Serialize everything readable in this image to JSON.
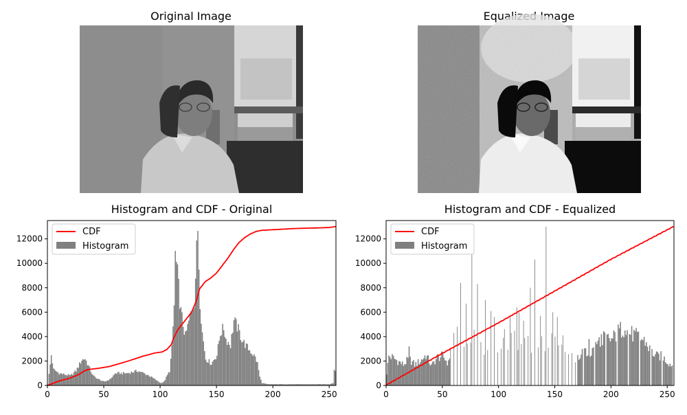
{
  "figure": {
    "panels": [
      {
        "title": "Original Image",
        "icon": "photo-grayscale"
      },
      {
        "title": "Equalized Image",
        "icon": "photo-grayscale-equalized"
      }
    ]
  },
  "colors": {
    "cdf": "#ff0000",
    "histogram": "#808080",
    "axes": "#000000"
  },
  "chart_data": [
    {
      "type": "bar",
      "title": "Histogram and CDF - Original",
      "xlabel": "",
      "ylabel": "",
      "xlim": [
        0,
        256
      ],
      "ylim": [
        0,
        13500
      ],
      "xticks": [
        "0",
        "50",
        "100",
        "150",
        "200",
        "250"
      ],
      "yticks": [
        "0",
        "2000",
        "4000",
        "6000",
        "8000",
        "10000",
        "12000"
      ],
      "legend": {
        "placement": "top-left",
        "entries": [
          "CDF",
          "Histogram"
        ]
      },
      "histogram_keypoints": [
        [
          0,
          100
        ],
        [
          3,
          2500
        ],
        [
          5,
          1300
        ],
        [
          10,
          1000
        ],
        [
          20,
          800
        ],
        [
          25,
          1200
        ],
        [
          30,
          2100
        ],
        [
          33,
          2200
        ],
        [
          37,
          1400
        ],
        [
          40,
          800
        ],
        [
          45,
          500
        ],
        [
          50,
          300
        ],
        [
          55,
          500
        ],
        [
          60,
          1000
        ],
        [
          70,
          1000
        ],
        [
          80,
          1200
        ],
        [
          85,
          1000
        ],
        [
          90,
          800
        ],
        [
          95,
          500
        ],
        [
          100,
          200
        ],
        [
          103,
          300
        ],
        [
          108,
          1200
        ],
        [
          110,
          3000
        ],
        [
          112,
          6500
        ],
        [
          113,
          10700
        ],
        [
          115,
          9000
        ],
        [
          118,
          6000
        ],
        [
          122,
          4000
        ],
        [
          126,
          5600
        ],
        [
          130,
          7000
        ],
        [
          133,
          12900
        ],
        [
          135,
          7000
        ],
        [
          137,
          4300
        ],
        [
          140,
          2200
        ],
        [
          145,
          1800
        ],
        [
          150,
          2500
        ],
        [
          153,
          4300
        ],
        [
          156,
          4700
        ],
        [
          158,
          3800
        ],
        [
          162,
          3300
        ],
        [
          165,
          5300
        ],
        [
          168,
          4800
        ],
        [
          172,
          3800
        ],
        [
          176,
          3200
        ],
        [
          180,
          2800
        ],
        [
          184,
          2300
        ],
        [
          186,
          1800
        ],
        [
          188,
          700
        ],
        [
          190,
          200
        ],
        [
          195,
          100
        ],
        [
          210,
          100
        ],
        [
          230,
          100
        ],
        [
          250,
          100
        ],
        [
          253,
          200
        ],
        [
          254,
          1300
        ],
        [
          255,
          1200
        ]
      ],
      "cdf_keypoints": [
        [
          0,
          0
        ],
        [
          10,
          350
        ],
        [
          20,
          600
        ],
        [
          28,
          900
        ],
        [
          33,
          1200
        ],
        [
          36,
          1300
        ],
        [
          45,
          1400
        ],
        [
          55,
          1550
        ],
        [
          70,
          1950
        ],
        [
          85,
          2400
        ],
        [
          95,
          2650
        ],
        [
          102,
          2750
        ],
        [
          106,
          2950
        ],
        [
          110,
          3350
        ],
        [
          112,
          3900
        ],
        [
          116,
          4600
        ],
        [
          122,
          5300
        ],
        [
          128,
          6000
        ],
        [
          132,
          6900
        ],
        [
          135,
          7900
        ],
        [
          140,
          8500
        ],
        [
          145,
          8800
        ],
        [
          150,
          9200
        ],
        [
          155,
          9800
        ],
        [
          160,
          10400
        ],
        [
          165,
          11100
        ],
        [
          170,
          11700
        ],
        [
          175,
          12100
        ],
        [
          180,
          12400
        ],
        [
          185,
          12600
        ],
        [
          190,
          12700
        ],
        [
          200,
          12750
        ],
        [
          220,
          12850
        ],
        [
          240,
          12900
        ],
        [
          250,
          12930
        ],
        [
          255,
          13000
        ]
      ]
    },
    {
      "type": "bar",
      "title": "Histogram and CDF - Equalized",
      "xlabel": "",
      "ylabel": "",
      "xlim": [
        0,
        256
      ],
      "ylim": [
        0,
        13500
      ],
      "xticks": [
        "0",
        "50",
        "100",
        "150",
        "200",
        "250"
      ],
      "yticks": [
        "0",
        "2000",
        "4000",
        "6000",
        "8000",
        "10000",
        "12000"
      ],
      "legend": {
        "placement": "top-left",
        "entries": [
          "CDF",
          "Histogram"
        ]
      },
      "histogram_keypoints": [
        [
          0,
          1000
        ],
        [
          2,
          2400
        ],
        [
          5,
          2300
        ],
        [
          10,
          2000
        ],
        [
          15,
          1700
        ],
        [
          20,
          2200
        ],
        [
          25,
          1700
        ],
        [
          30,
          2000
        ],
        [
          35,
          2500
        ],
        [
          40,
          1600
        ],
        [
          45,
          2300
        ],
        [
          50,
          2400
        ],
        [
          55,
          1800
        ],
        [
          58,
          3500
        ],
        [
          62,
          4000
        ],
        [
          66,
          3900
        ],
        [
          70,
          3200
        ],
        [
          75,
          3900
        ],
        [
          80,
          3300
        ],
        [
          85,
          3000
        ],
        [
          90,
          3600
        ],
        [
          95,
          3700
        ],
        [
          100,
          3000
        ],
        [
          105,
          3700
        ],
        [
          110,
          4100
        ],
        [
          115,
          4200
        ],
        [
          120,
          3800
        ],
        [
          125,
          3600
        ],
        [
          130,
          3200
        ],
        [
          135,
          4400
        ],
        [
          140,
          3700
        ],
        [
          145,
          4300
        ],
        [
          150,
          4300
        ],
        [
          155,
          3700
        ],
        [
          160,
          3700
        ],
        [
          165,
          2600
        ],
        [
          170,
          2300
        ],
        [
          175,
          2800
        ],
        [
          180,
          2400
        ],
        [
          185,
          3100
        ],
        [
          190,
          3800
        ],
        [
          195,
          3900
        ],
        [
          200,
          3700
        ],
        [
          205,
          4300
        ],
        [
          210,
          4700
        ],
        [
          215,
          4400
        ],
        [
          220,
          4100
        ],
        [
          225,
          3900
        ],
        [
          230,
          3600
        ],
        [
          235,
          2800
        ],
        [
          240,
          2400
        ],
        [
          245,
          2400
        ],
        [
          250,
          1900
        ],
        [
          255,
          1600
        ]
      ],
      "spikes": [
        [
          20,
          3200
        ],
        [
          57,
          3100
        ],
        [
          60,
          4300
        ],
        [
          63,
          4800
        ],
        [
          66,
          8400
        ],
        [
          71,
          6700
        ],
        [
          76,
          10800
        ],
        [
          81,
          8300
        ],
        [
          88,
          7000
        ],
        [
          93,
          6100
        ],
        [
          96,
          5600
        ],
        [
          104,
          3900
        ],
        [
          110,
          5600
        ],
        [
          116,
          6400
        ],
        [
          118,
          6000
        ],
        [
          122,
          5300
        ],
        [
          128,
          8000
        ],
        [
          132,
          10300
        ],
        [
          137,
          5700
        ],
        [
          142,
          13000
        ],
        [
          148,
          6000
        ],
        [
          152,
          5600
        ],
        [
          157,
          4100
        ],
        [
          180,
          3800
        ],
        [
          192,
          3300
        ],
        [
          212,
          4500
        ]
      ],
      "cdf_keypoints": [
        [
          0,
          0
        ],
        [
          50,
          2600
        ],
        [
          100,
          5100
        ],
        [
          150,
          7700
        ],
        [
          200,
          10300
        ],
        [
          256,
          13000
        ]
      ]
    }
  ]
}
